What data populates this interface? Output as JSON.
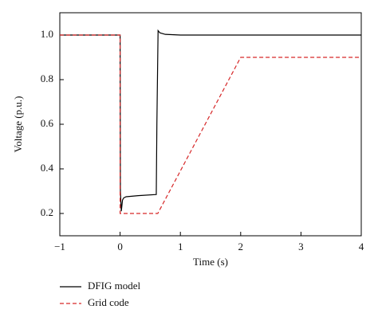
{
  "chart_data": {
    "type": "line",
    "x_label": "Time (s)",
    "y_label": "Voltage (p.u.)",
    "series": [
      {
        "name": "DFIG model",
        "color": "#000000",
        "dash": "solid",
        "x": [
          -1,
          0,
          0.005,
          0.02,
          0.04,
          0.06,
          0.1,
          0.3,
          0.6,
          0.61,
          0.63,
          0.66,
          0.75,
          1,
          4
        ],
        "values": [
          1,
          1,
          0.3,
          0.21,
          0.26,
          0.27,
          0.275,
          0.28,
          0.285,
          0.6,
          1.02,
          1.01,
          1.003,
          1,
          1
        ]
      },
      {
        "name": "Grid code",
        "color": "#d62728",
        "dash": "dashed",
        "x": [
          -1,
          0,
          0,
          0.625,
          2,
          4
        ],
        "values": [
          1,
          1,
          0.2,
          0.2,
          0.9,
          0.9
        ]
      }
    ],
    "xlim": [
      -1,
      4
    ],
    "xticks": [
      {
        "value": -1,
        "label": "−1"
      },
      0,
      1,
      2,
      3,
      4
    ],
    "ylim": [
      0.1,
      1.1
    ],
    "yticks": [
      {
        "value": 0.2,
        "label": "0.2"
      },
      {
        "value": 0.4,
        "label": "0.4"
      },
      {
        "value": 0.6,
        "label": "0.6"
      },
      {
        "value": 0.8,
        "label": "0.8"
      },
      {
        "value": 1.0,
        "label": "1.0"
      }
    ],
    "grid": false
  }
}
